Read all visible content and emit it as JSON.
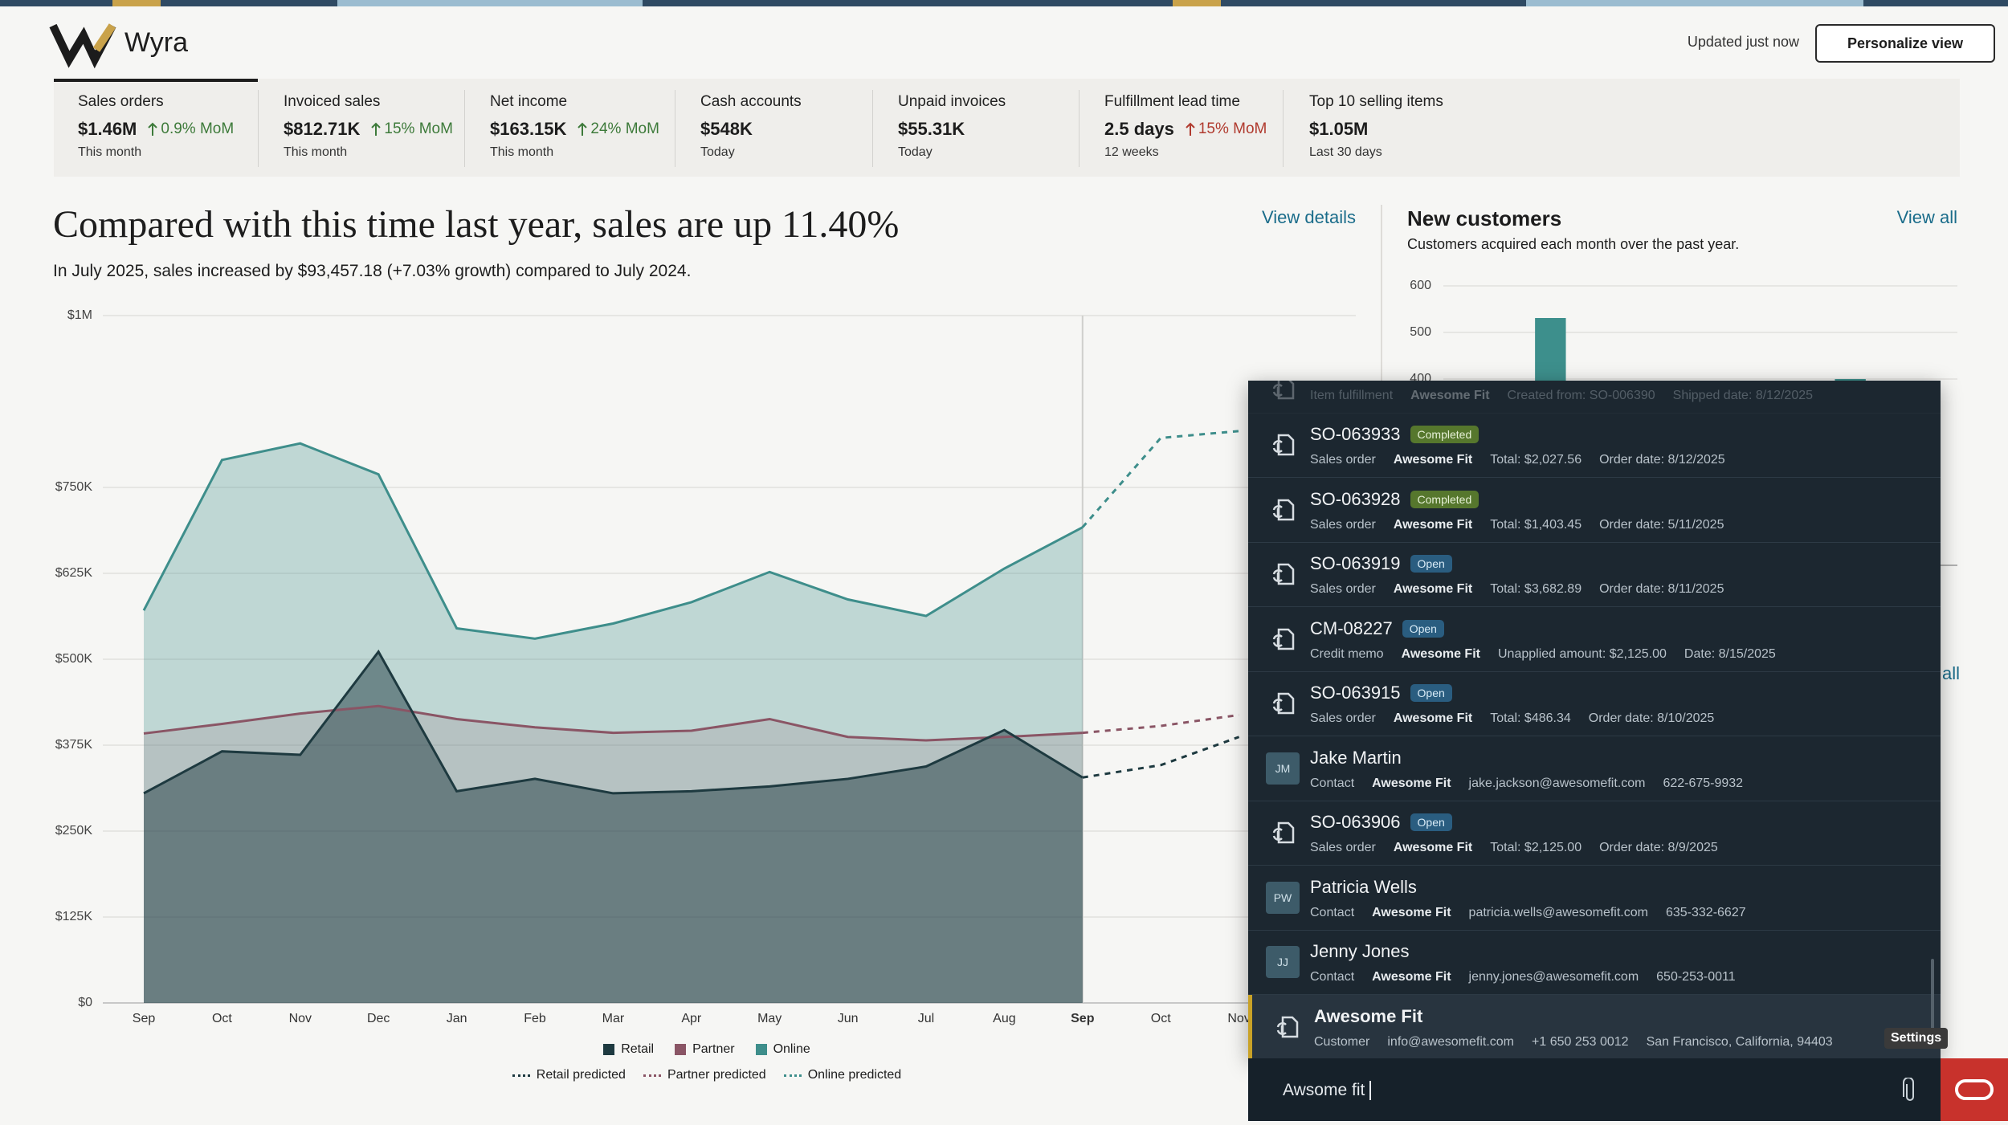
{
  "header": {
    "brand": "Wyra",
    "status": "Updated just now",
    "button": "Personalize view"
  },
  "kpis": [
    {
      "label": "Sales orders",
      "value": "$1.46M",
      "change": "0.9% MoM",
      "change_color": "#3d7a3a",
      "sub": "This month"
    },
    {
      "label": "Invoiced sales",
      "value": "$812.71K",
      "change": "15% MoM",
      "change_color": "#3d7a3a",
      "sub": "This month"
    },
    {
      "label": "Net income",
      "value": "$163.15K",
      "change": "24% MoM",
      "change_color": "#3d7a3a",
      "sub": "This month"
    },
    {
      "label": "Cash accounts",
      "value": "$548K",
      "sub": "Today"
    },
    {
      "label": "Unpaid invoices",
      "value": "$55.31K",
      "sub": "Today"
    },
    {
      "label": "Fulfillment lead time",
      "value": "2.5 days",
      "change": "15% MoM",
      "change_color": "#b03a2e",
      "sub": "12 weeks"
    },
    {
      "label": "Top 10 selling items",
      "value": "$1.05M",
      "sub": "Last 30 days"
    }
  ],
  "chart_data": {
    "type": "area",
    "title": "Compared with this time last year, sales are up 11.40%",
    "subtitle": "In July 2025, sales increased by $93,457.18 (+7.03% growth) compared to July 2024.",
    "link": "View details",
    "categories": [
      "Sep",
      "Oct",
      "Nov",
      "Dec",
      "Jan",
      "Feb",
      "Mar",
      "Apr",
      "May",
      "Jun",
      "Jul",
      "Aug",
      "Sep",
      "Oct",
      "Nov"
    ],
    "series": [
      {
        "name": "Retail",
        "color": "#1e3a40",
        "values": [
          305000,
          366000,
          361000,
          511000,
          308000,
          326000,
          305000,
          308000,
          315000,
          326000,
          344000,
          397000,
          328000,
          null,
          null
        ]
      },
      {
        "name": "Partner",
        "color": "#8a5565",
        "values": [
          392000,
          406000,
          421000,
          432000,
          413000,
          401000,
          393000,
          396000,
          413000,
          387000,
          382000,
          387000,
          393000,
          null,
          null
        ]
      },
      {
        "name": "Online",
        "color": "#3e8e8b",
        "values": [
          571000,
          790000,
          814000,
          769000,
          545000,
          530000,
          552000,
          583000,
          627000,
          587000,
          563000,
          632000,
          692000,
          null,
          null
        ]
      },
      {
        "name": "Retail predicted",
        "color": "#1e3a40",
        "dashed": true,
        "values": [
          null,
          null,
          null,
          null,
          null,
          null,
          null,
          null,
          null,
          null,
          null,
          null,
          328000,
          346000,
          387000
        ]
      },
      {
        "name": "Partner predicted",
        "color": "#8a5565",
        "dashed": true,
        "values": [
          null,
          null,
          null,
          null,
          null,
          null,
          null,
          null,
          null,
          null,
          null,
          null,
          393000,
          403000,
          419000
        ]
      },
      {
        "name": "Online predicted",
        "color": "#3e8e8b",
        "dashed": true,
        "values": [
          null,
          null,
          null,
          null,
          null,
          null,
          null,
          null,
          null,
          null,
          null,
          null,
          692000,
          822000,
          832000
        ]
      }
    ],
    "ylim": [
      0,
      1000000
    ],
    "yticks": [
      {
        "value": 0,
        "label": "$0"
      },
      {
        "value": 125000,
        "label": "$125K"
      },
      {
        "value": 250000,
        "label": "$250K"
      },
      {
        "value": 375000,
        "label": "$375K"
      },
      {
        "value": 500000,
        "label": "$500K"
      },
      {
        "value": 625000,
        "label": "$625K"
      },
      {
        "value": 750000,
        "label": "$750K"
      },
      {
        "value": 1000000,
        "label": "$1M"
      }
    ],
    "grid": true
  },
  "new_customers": {
    "type": "bar",
    "title": "New customers",
    "subtitle": "Customers acquired each month over the past year.",
    "link": "View all",
    "partial_link": "all",
    "categories": [
      null,
      null,
      null,
      null,
      null,
      null,
      null,
      null,
      null,
      null,
      null,
      null
    ],
    "values": [
      null,
      null,
      531,
      null,
      null,
      null,
      null,
      null,
      null,
      400,
      null,
      null
    ],
    "color": "#3d8f8c",
    "ylim": [
      0,
      600
    ],
    "yticks": [
      400,
      500,
      600
    ],
    "grid": true
  },
  "search": {
    "partial": {
      "kind": "Item fulfillment",
      "company": "Awesome Fit",
      "fields": [
        "Created from: SO-006390",
        "Shipped date: 8/12/2025"
      ]
    },
    "results": [
      {
        "title": "SO-063933",
        "badge": "Completed",
        "kind": "Sales order",
        "company": "Awesome Fit",
        "fields": [
          "Total: $2,027.56",
          "Order date: 8/12/2025"
        ]
      },
      {
        "title": "SO-063928",
        "badge": "Completed",
        "kind": "Sales order",
        "company": "Awesome Fit",
        "fields": [
          "Total: $1,403.45",
          "Order date: 5/11/2025"
        ]
      },
      {
        "title": "SO-063919",
        "badge": "Open",
        "kind": "Sales order",
        "company": "Awesome Fit",
        "fields": [
          "Total: $3,682.89",
          "Order date: 8/11/2025"
        ]
      },
      {
        "title": "CM-08227",
        "badge": "Open",
        "kind": "Credit memo",
        "company": "Awesome Fit",
        "fields": [
          "Unapplied amount: $2,125.00",
          "Date: 8/15/2025"
        ]
      },
      {
        "title": "SO-063915",
        "badge": "Open",
        "kind": "Sales order",
        "company": "Awesome Fit",
        "fields": [
          "Total: $486.34",
          "Order date: 8/10/2025"
        ]
      },
      {
        "title": "Jake Martin",
        "avatar": "JM",
        "kind": "Contact",
        "company": "Awesome Fit",
        "fields": [
          "jake.jackson@awesomefit.com",
          "622-675-9932"
        ]
      },
      {
        "title": "SO-063906",
        "badge": "Open",
        "kind": "Sales order",
        "company": "Awesome Fit",
        "fields": [
          "Total: $2,125.00",
          "Order date: 8/9/2025"
        ]
      },
      {
        "title": "Patricia Wells",
        "avatar": "PW",
        "kind": "Contact",
        "company": "Awesome Fit",
        "fields": [
          "patricia.wells@awesomefit.com",
          "635-332-6627"
        ]
      },
      {
        "title": "Jenny Jones",
        "avatar": "JJ",
        "kind": "Contact",
        "company": "Awesome Fit",
        "fields": [
          "jenny.jones@awesomefit.com",
          "650-253-0011"
        ]
      },
      {
        "title": "Awesome Fit",
        "kind": "Customer",
        "fields": [
          "info@awesomefit.com",
          "+1 650 253 0012",
          "San Francisco, California, 94403"
        ],
        "selected": true
      }
    ],
    "input": "Awsome fit",
    "tooltip": "Settings"
  }
}
